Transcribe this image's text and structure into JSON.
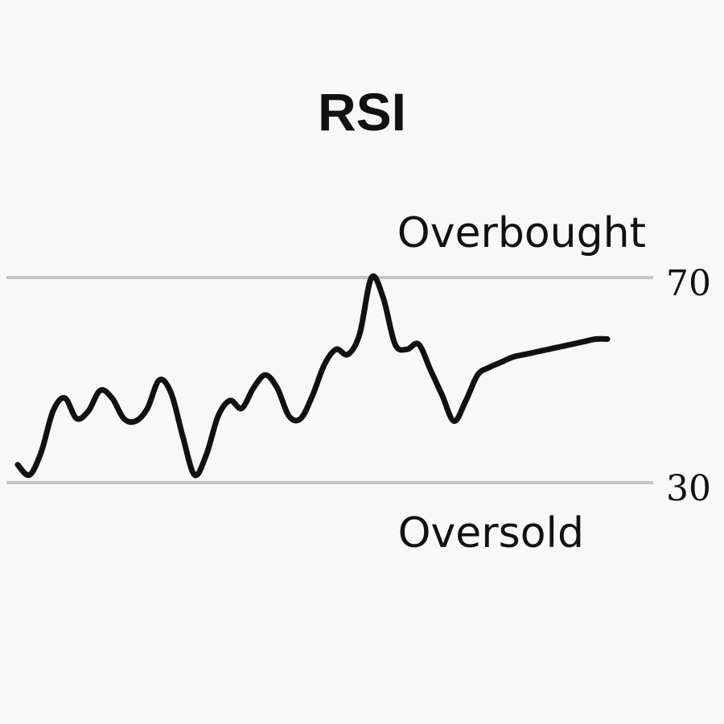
{
  "chart_data": {
    "type": "line",
    "title": "RSI",
    "xlabel": "",
    "ylabel": "",
    "ylim": [
      30,
      70
    ],
    "grid": false,
    "legend": "none",
    "levels": [
      {
        "value": 70,
        "label": "70",
        "zone_label": "Overbought"
      },
      {
        "value": 30,
        "label": "30",
        "zone_label": "Oversold"
      }
    ],
    "series": [
      {
        "x": [
          0,
          1,
          2,
          3,
          4,
          5,
          6,
          7,
          8,
          9,
          10,
          11,
          12,
          13,
          14,
          15,
          16,
          17,
          18,
          19,
          20,
          21,
          22,
          23,
          24,
          25,
          26,
          27,
          28,
          29,
          30,
          31,
          32,
          33,
          34,
          35,
          36,
          37,
          38,
          39,
          40,
          41,
          42,
          43,
          44,
          45,
          46,
          47,
          48,
          49,
          50
        ],
        "values": [
          33.5,
          31.5,
          36,
          44,
          46.5,
          42.5,
          44,
          48,
          46.5,
          42.5,
          42,
          44.5,
          50,
          47.5,
          39,
          31.5,
          35.5,
          43,
          46,
          44.5,
          48.5,
          51,
          48.5,
          43,
          42.5,
          47,
          53,
          56,
          55,
          59,
          70,
          66,
          57,
          56,
          57,
          52,
          47,
          42,
          46,
          51,
          52.5,
          53.5,
          54.5,
          55,
          55.5,
          56,
          56.5,
          57,
          57.5,
          58,
          58
        ]
      }
    ],
    "colors": {
      "line": "#111111",
      "level_line": "#c4c4c4",
      "background": "#f8f8f8"
    }
  }
}
